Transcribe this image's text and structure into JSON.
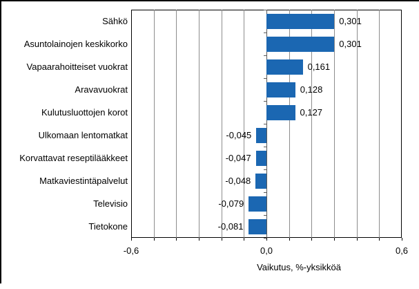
{
  "chart_data": {
    "type": "bar",
    "orientation": "horizontal",
    "categories": [
      "Sähkö",
      "Asuntolainojen keskikorko",
      "Vapaarahoitteiset vuokrat",
      "Aravavuokrat",
      "Kulutusluottojen korot",
      "Ulkomaan lentomatkat",
      "Korvattavat reseptilääkkeet",
      "Matkaviestintäpalvelut",
      "Televisio",
      "Tietokone"
    ],
    "values": [
      0.301,
      0.301,
      0.161,
      0.128,
      0.127,
      -0.045,
      -0.047,
      -0.048,
      -0.079,
      -0.081
    ],
    "value_labels": [
      "0,301",
      "0,301",
      "0,161",
      "0,128",
      "0,127",
      "-0,045",
      "-0,047",
      "-0,048",
      "-0,079",
      "-0,081"
    ],
    "xlabel": "Vaikutus, %-yksikköä",
    "xlim": [
      -0.6,
      0.6
    ],
    "gridline_step": 0.1,
    "x_ticks": [
      {
        "value": -0.6,
        "label": "-0,6"
      },
      {
        "value": 0.0,
        "label": "0,0"
      },
      {
        "value": 0.6,
        "label": "0,6"
      }
    ],
    "legend": null,
    "title": "",
    "colors": {
      "bar": "#1b67b2",
      "gridline": "#8c8c8c",
      "zero_axis": "#595959",
      "axis_border": "#000000",
      "background": "#ffffff"
    }
  }
}
